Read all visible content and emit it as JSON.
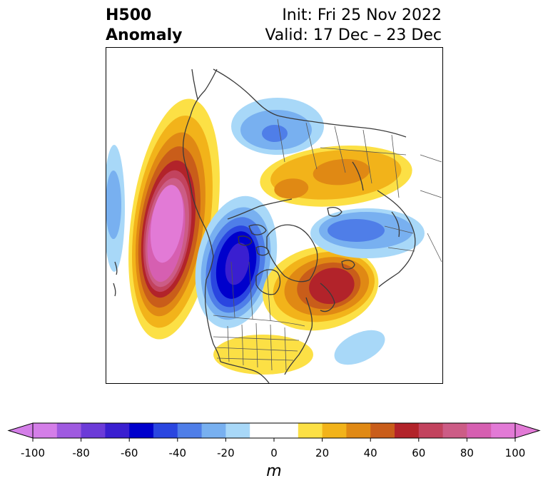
{
  "title": {
    "left_line1": "H500",
    "left_line2": "Anomaly",
    "right_line1": "Init: Fri 25 Nov 2022",
    "right_line2": "Valid: 17 Dec – 23 Dec"
  },
  "colorbar": {
    "unit": "m",
    "ticks": [
      "-100",
      "-80",
      "-60",
      "-40",
      "-20",
      "0",
      "20",
      "40",
      "60",
      "80",
      "100"
    ],
    "tick_values": [
      -100,
      -80,
      -60,
      -40,
      -20,
      0,
      20,
      40,
      60,
      80,
      100
    ],
    "range": [
      -100,
      100
    ],
    "extend": "both",
    "colors": [
      "#d47ee8",
      "#9f5ae0",
      "#6c3bd8",
      "#3a1fd0",
      "#0000cc",
      "#2a46e0",
      "#4f7ee8",
      "#78b0f0",
      "#a8d8f8",
      "#ffffff",
      "#ffffff",
      "#fce045",
      "#f2b31a",
      "#e08914",
      "#c95d1a",
      "#b2232a",
      "#c2435e",
      "#cc5c86",
      "#d65fb1",
      "#e27ad6"
    ]
  },
  "map": {
    "projection": "north-polar stereographic",
    "features": [
      "coastlines",
      "country borders",
      "US state borders",
      "Canadian province borders"
    ],
    "anomaly_centers": [
      {
        "region": "Gulf of Alaska / NE Pacific",
        "sign": "positive",
        "approx_peak_m": 100
      },
      {
        "region": "Western Canada / US Pacific Northwest",
        "sign": "negative",
        "approx_peak_m": -60
      },
      {
        "region": "Eastern Canada / Hudson Bay east",
        "sign": "positive",
        "approx_peak_m": 60
      },
      {
        "region": "Siberia / Arctic Russia",
        "sign": "positive",
        "approx_peak_m": 40
      },
      {
        "region": "Northern Europe / Scandinavia",
        "sign": "negative",
        "approx_peak_m": -40
      },
      {
        "region": "East Siberian Sea / Chukotka",
        "sign": "negative",
        "approx_peak_m": -40
      },
      {
        "region": "Central North Pacific",
        "sign": "negative",
        "approx_peak_m": -30
      },
      {
        "region": "Western Atlantic south of Nova Scotia",
        "sign": "negative",
        "approx_peak_m": -20
      },
      {
        "region": "Southeastern US",
        "sign": "positive",
        "approx_peak_m": 20
      }
    ]
  }
}
